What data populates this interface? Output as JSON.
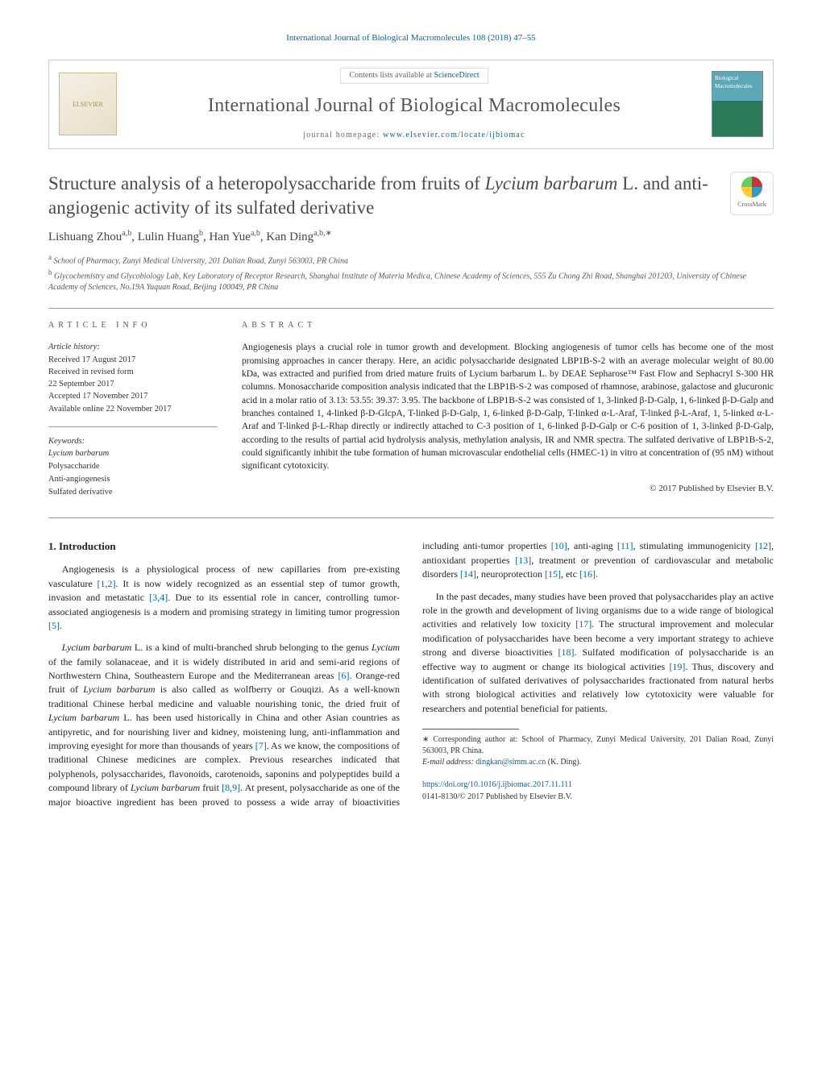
{
  "top_citation": "International Journal of Biological Macromolecules 108 (2018) 47–55",
  "header": {
    "contents_line_prefix": "Contents lists available at ",
    "contents_link": "ScienceDirect",
    "journal_name": "International Journal of Biological Macromolecules",
    "homepage_prefix": "journal homepage: ",
    "homepage_url": "www.elsevier.com/locate/ijbiomac",
    "elsevier_text": "ELSEVIER",
    "cover_text": "Biological Macromolecules"
  },
  "title_html": "Structure analysis of a heteropolysaccharide from fruits of <em>Lycium barbarum</em> L. and anti-angiogenic activity of its sulfated derivative",
  "crossmark_label": "CrossMark",
  "authors_html": "Lishuang Zhou<sup>a,b</sup>, Lulin Huang<sup>b</sup>, Han Yue<sup>a,b</sup>, Kan Ding<sup>a,b,∗</sup>",
  "affiliations": [
    "a School of Pharmacy, Zunyi Medical University, 201 Dalian Road, Zunyi 563003, PR China",
    "b Glycochemistry and Glycobiology Lab, Key Laboratory of Receptor Research, Shanghai Institute of Materia Medica, Chinese Academy of Sciences, 555 Zu Chong Zhi Road, Shanghai 201203, University of Chinese Academy of Sciences, No.19A Yuquan Road, Beijing 100049, PR China"
  ],
  "article_info": {
    "heading": "article info",
    "history_label": "Article history:",
    "received": "Received 17 August 2017",
    "revised1": "Received in revised form",
    "revised2": "22 September 2017",
    "accepted": "Accepted 17 November 2017",
    "online": "Available online 22 November 2017",
    "keywords_label": "Keywords:",
    "keywords": [
      "Lycium barbarum",
      "Polysaccharide",
      "Anti-angiogenesis",
      "Sulfated derivative"
    ]
  },
  "abstract": {
    "heading": "abstract",
    "text": "Angiogenesis plays a crucial role in tumor growth and development. Blocking angiogenesis of tumor cells has become one of the most promising approaches in cancer therapy. Here, an acidic polysaccharide designated LBP1B-S-2 with an average molecular weight of 80.00 kDa, was extracted and purified from dried mature fruits of Lycium barbarum L. by DEAE Sepharose™ Fast Flow and Sephacryl S-300 HR columns. Monosaccharide composition analysis indicated that the LBP1B-S-2 was composed of rhamnose, arabinose, galactose and glucuronic acid in a molar ratio of 3.13: 53.55: 39.37: 3.95. The backbone of LBP1B-S-2 was consisted of 1, 3-linked β-D-Galp, 1, 6-linked β-D-Galp and branches contained 1, 4-linked β-D-GlcpA, T-linked β-D-Galp, 1, 6-linked β-D-Galp, T-linked α-L-Araf, T-linked β-L-Araf, 1, 5-linked α-L-Araf and T-linked β-L-Rhap directly or indirectly attached to C-3 position of 1, 6-linked β-D-Galp or C-6 position of 1, 3-linked β-D-Galp, according to the results of partial acid hydrolysis analysis, methylation analysis, IR and NMR spectra. The sulfated derivative of LBP1B-S-2, could significantly inhibit the tube formation of human microvascular endothelial cells (HMEC-1) in vitro at concentration of (95 nM) without significant cytotoxicity.",
    "copyright": "© 2017 Published by Elsevier B.V."
  },
  "body": {
    "section_num": "1.",
    "section_title": "Introduction",
    "p1_html": "Angiogenesis is a physiological process of new capillaries from pre-existing vasculature <a class=\"ref\" href=\"#\">[1,2]</a>. It is now widely recognized as an essential step of tumor growth, invasion and metastatic <a class=\"ref\" href=\"#\">[3,4]</a>. Due to its essential role in cancer, controlling tumor-associated angiogenesis is a modern and promising strategy in limiting tumor progression <a class=\"ref\" href=\"#\">[5]</a>.",
    "p2_html": "<em>Lycium barbarum</em> L. is a kind of multi-branched shrub belonging to the genus <em>Lycium</em> of the family solanaceae, and it is widely distributed in arid and semi-arid regions of Northwestern China, Southeastern Europe and the Mediterranean areas <a class=\"ref\" href=\"#\">[6]</a>. Orange-red fruit of <em>Lycium barbarum</em> is also called as wolfberry or Gouqizi. As a well-known traditional Chinese herbal medicine and valuable nourishing tonic, the dried fruit of <em>Lycium barbarum</em> L. has been used historically in China and other Asian countries as antipyretic, and for nourishing liver and kidney, moistening lung, anti-inflammation and improving eyesight for more than thousands of years <a class=\"ref\" href=\"#\">[7]</a>. As we know, the compositions of traditional Chinese medicines are complex. Previous researches indicated that polyphenols, polysaccharides, flavonoids, carotenoids, saponins and polypeptides build a compound library of <em>Lycium barbarum</em> fruit <a class=\"ref\" href=\"#\">[8,9]</a>. At present, polysaccharide as one of the major bioactive ingredient has been proved to possess a wide array of bioactivities including anti-tumor properties <a class=\"ref\" href=\"#\">[10]</a>, anti-aging <a class=\"ref\" href=\"#\">[11]</a>, stimulating immunogenicity <a class=\"ref\" href=\"#\">[12]</a>, antioxidant properties <a class=\"ref\" href=\"#\">[13]</a>, treatment or prevention of cardiovascular and metabolic disorders <a class=\"ref\" href=\"#\">[14]</a>, neuroprotection <a class=\"ref\" href=\"#\">[15]</a>, etc <a class=\"ref\" href=\"#\">[16]</a>.",
    "p3_html": "In the past decades, many studies have been proved that polysaccharides play an active role in the growth and development of living organisms due to a wide range of biological activities and relatively low toxicity <a class=\"ref\" href=\"#\">[17]</a>. The structural improvement and molecular modification of polysaccharides have been become a very important strategy to achieve strong and diverse bioactivities <a class=\"ref\" href=\"#\">[18]</a>. Sulfated modification of polysaccharide is an effective way to augment or change its biological activities <a class=\"ref\" href=\"#\">[19]</a>. Thus, discovery and identification of sulfated derivatives of polysaccharides fractionated from natural herbs with strong biological activities and relatively low cytotoxicity were valuable for researchers and potential beneficial for patients."
  },
  "footnotes": {
    "corr": "∗ Corresponding author at: School of Pharmacy, Zunyi Medical University, 201 Dalian Road, Zunyi 563003, PR China.",
    "email_label": "E-mail address: ",
    "email": "dingkan@simm.ac.cn",
    "email_suffix": " (K. Ding)."
  },
  "doi": {
    "url": "https://doi.org/10.1016/j.ijbiomac.2017.11.111",
    "issn_line": "0141-8130/© 2017 Published by Elsevier B.V."
  },
  "colors": {
    "link": "#0066a4",
    "text": "#333333",
    "rule": "#999999"
  }
}
